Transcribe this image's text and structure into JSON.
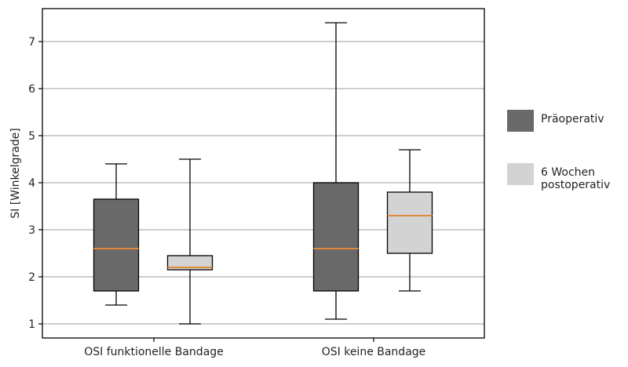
{
  "chart_data": {
    "type": "box",
    "ylabel": "SI [Winkelgrade]",
    "xlabel": "",
    "ylim": [
      0.7,
      7.7
    ],
    "yticks": [
      1,
      2,
      3,
      4,
      5,
      6,
      7
    ],
    "grid": "horizontal",
    "legend_placement": "right",
    "categories": [
      "OSI funktionelle Bandage",
      "OSI keine Bandage"
    ],
    "series": [
      {
        "name": "Präoperativ",
        "color": "#696969",
        "boxes": [
          {
            "whisker_low": 1.4,
            "q1": 1.7,
            "median": 2.6,
            "q3": 3.65,
            "whisker_high": 4.4
          },
          {
            "whisker_low": 1.1,
            "q1": 1.7,
            "median": 2.6,
            "q3": 4.0,
            "whisker_high": 7.4
          }
        ]
      },
      {
        "name": "6 Wochen\npostoperativ",
        "color": "#d3d3d3",
        "boxes": [
          {
            "whisker_low": 1.0,
            "q1": 2.15,
            "median": 2.2,
            "q3": 2.45,
            "whisker_high": 4.5
          },
          {
            "whisker_low": 1.7,
            "q1": 2.5,
            "median": 3.3,
            "q3": 3.8,
            "whisker_high": 4.7
          }
        ]
      }
    ],
    "median_color": "#e08a3c",
    "grid_color": "#b0b0b0"
  }
}
